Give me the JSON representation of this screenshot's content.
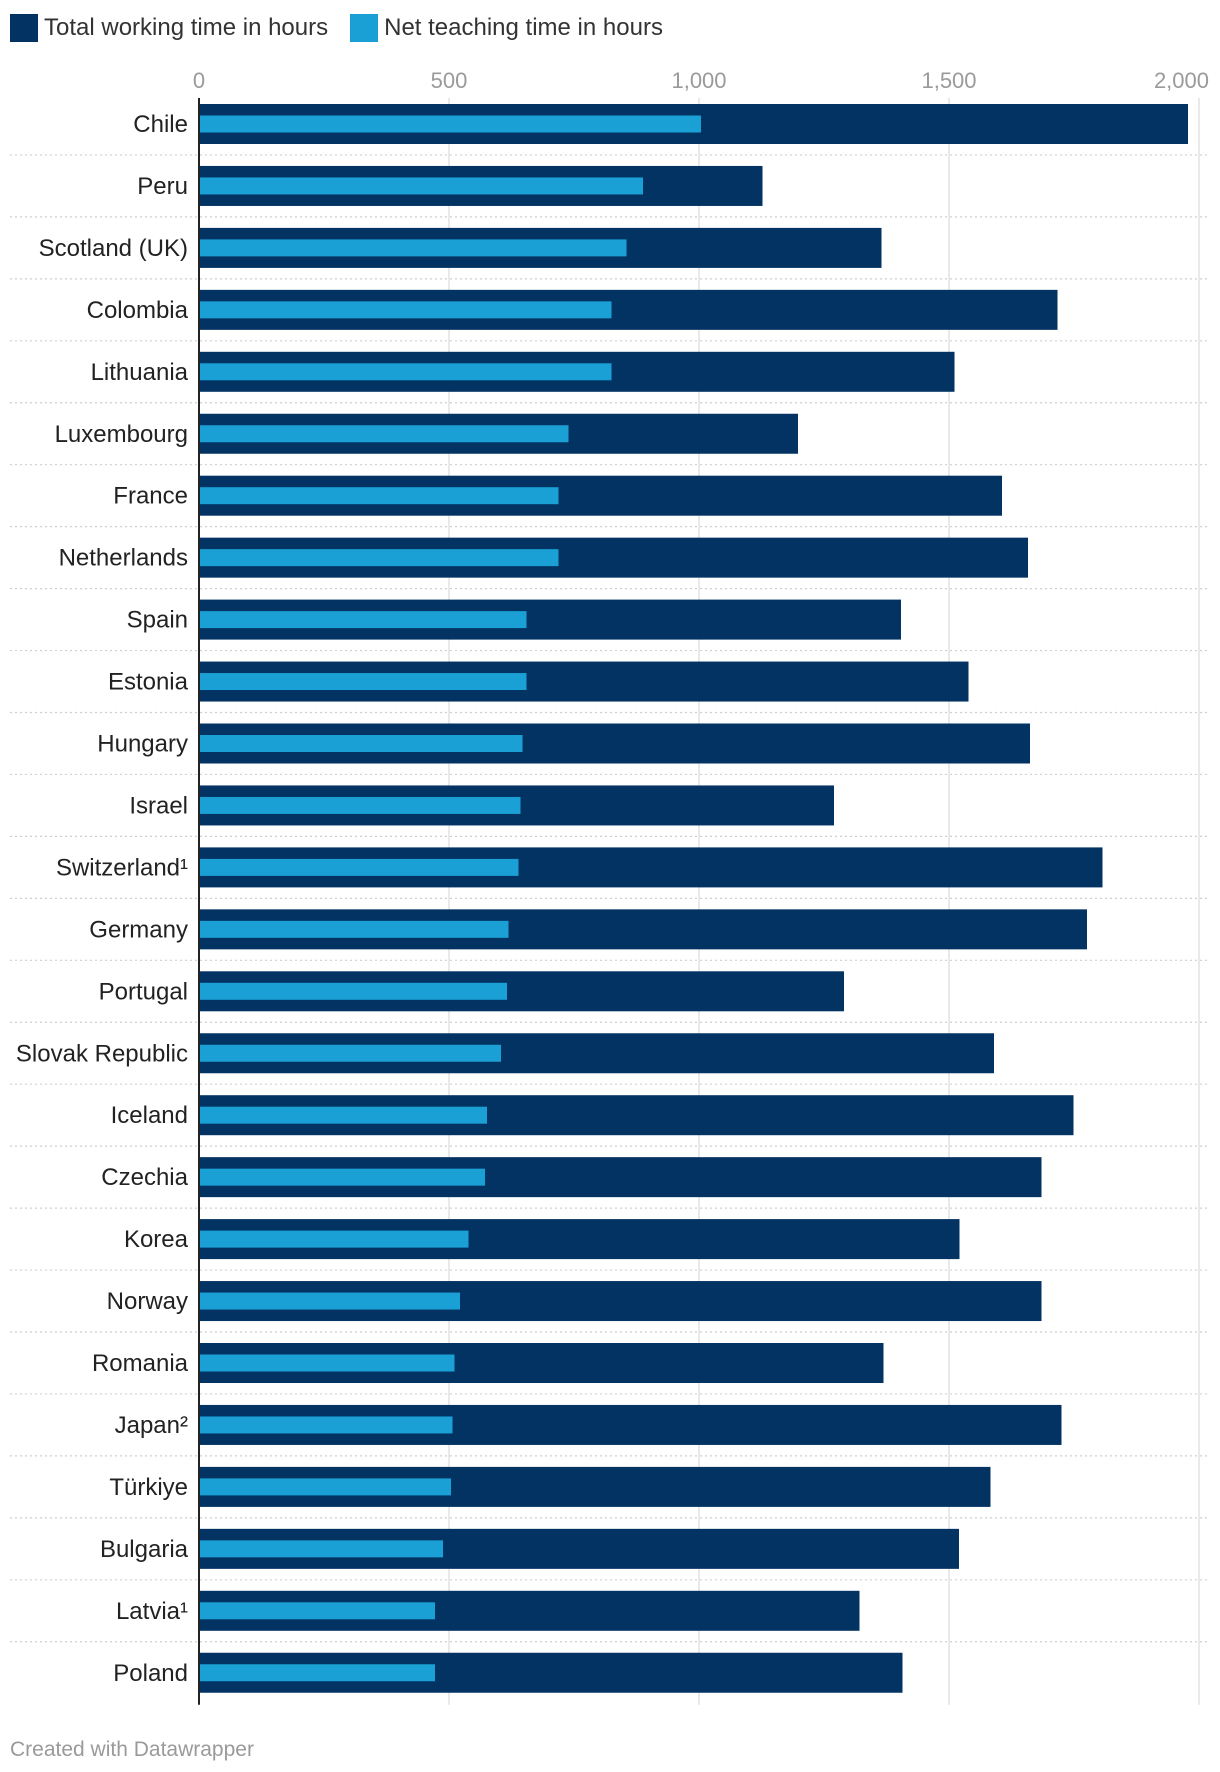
{
  "chart_data": {
    "type": "bar",
    "orientation": "horizontal",
    "title": "",
    "xlabel": "",
    "ylabel": "",
    "xlim": [
      0,
      2000
    ],
    "ticks": [
      0,
      500,
      1000,
      1500,
      2000
    ],
    "tick_labels": [
      "0",
      "500",
      "1,000",
      "1,500",
      "2,000"
    ],
    "legend_position": "top-left",
    "categories": [
      "Chile",
      "Peru",
      "Scotland (UK)",
      "Colombia",
      "Lithuania",
      "Luxembourg",
      "France",
      "Netherlands",
      "Spain",
      "Estonia",
      "Hungary",
      "Israel",
      "Switzerland¹",
      "Germany",
      "Portugal",
      "Slovak Republic",
      "Iceland",
      "Czechia",
      "Korea",
      "Norway",
      "Romania",
      "Japan²",
      "Türkiye",
      "Bulgaria",
      "Latvia¹",
      "Poland"
    ],
    "series": [
      {
        "name": "Total working time in hours",
        "color": "#023363",
        "values": [
          1978,
          1127,
          1365,
          1717,
          1511,
          1198,
          1606,
          1658,
          1404,
          1539,
          1662,
          1270,
          1807,
          1776,
          1290,
          1590,
          1749,
          1685,
          1521,
          1685,
          1369,
          1725,
          1583,
          1520,
          1321,
          1407
        ]
      },
      {
        "name": "Net teaching time in hours",
        "color": "#1aa0d4",
        "values": [
          1004,
          888,
          855,
          825,
          825,
          739,
          719,
          719,
          655,
          655,
          647,
          643,
          639,
          619,
          616,
          604,
          576,
          572,
          539,
          522,
          511,
          507,
          504,
          488,
          472,
          472
        ]
      }
    ]
  },
  "footer": "Created with Datawrapper"
}
